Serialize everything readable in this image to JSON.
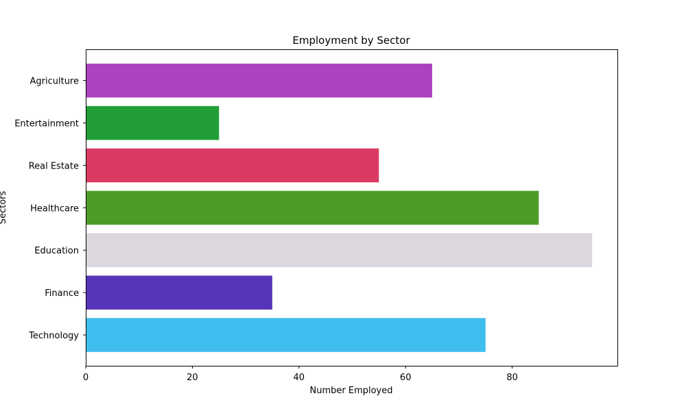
{
  "chart_data": {
    "type": "bar",
    "orientation": "horizontal",
    "title": "Employment by Sector",
    "xlabel": "Number Employed",
    "ylabel": "Sectors",
    "categories": [
      "Technology",
      "Finance",
      "Education",
      "Healthcare",
      "Real Estate",
      "Entertainment",
      "Agriculture"
    ],
    "values": [
      75,
      35,
      95,
      85,
      55,
      25,
      65
    ],
    "colors": [
      "#3fbdee",
      "#5834b8",
      "#dcd7de",
      "#4e9c28",
      "#db3a62",
      "#229e38",
      "#ad42c1"
    ],
    "xlim": [
      0,
      100
    ],
    "xticks": [
      0,
      20,
      40,
      60,
      80
    ],
    "grid": false,
    "legend": "none"
  }
}
